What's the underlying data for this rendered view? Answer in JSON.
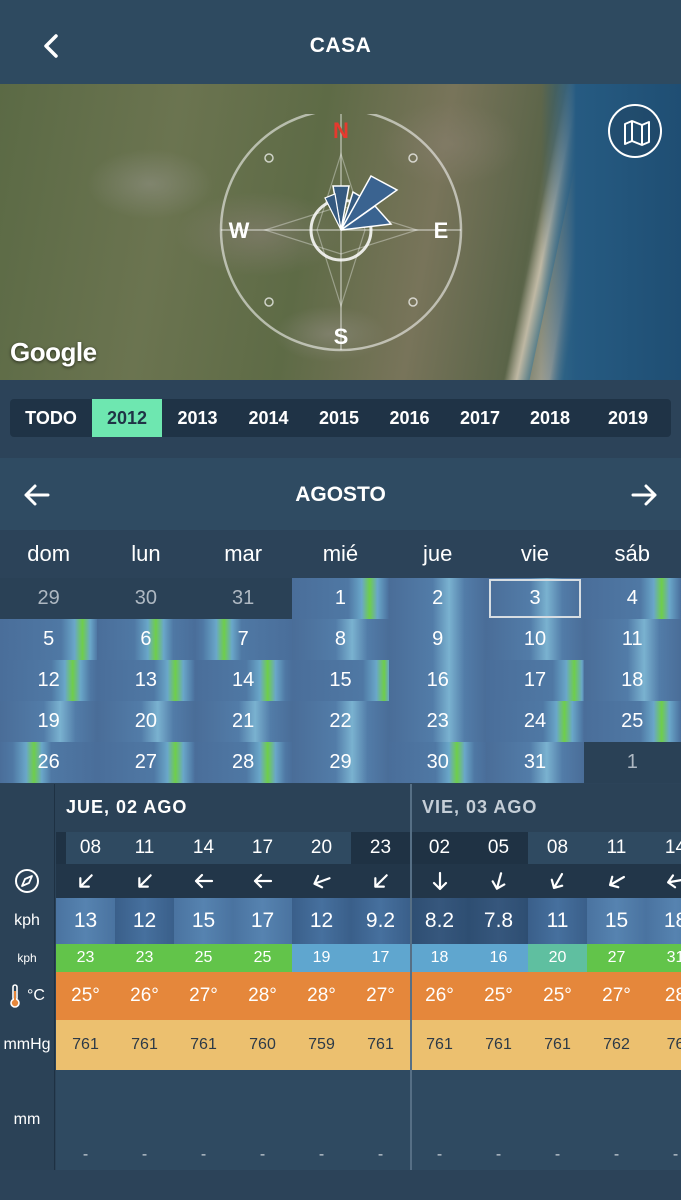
{
  "header": {
    "title": "CASA",
    "back_icon": "chevron-left-icon"
  },
  "map": {
    "attribution": "Google",
    "map_button_icon": "map-icon",
    "compass": {
      "north": "N",
      "south": "S",
      "east": "E",
      "west": "W"
    }
  },
  "years": {
    "tabs": [
      "TODO",
      "2012",
      "2013",
      "2014",
      "2015",
      "2016",
      "2017",
      "2018",
      "2019"
    ],
    "active": "2012"
  },
  "month": {
    "title": "AGOSTO",
    "prev_icon": "arrow-left-icon",
    "next_icon": "arrow-right-icon"
  },
  "weekdays": [
    "dom",
    "lun",
    "mar",
    "mié",
    "jue",
    "vie",
    "sáb"
  ],
  "calendar": {
    "weeks": [
      [
        "29",
        "30",
        "31",
        "1",
        "2",
        "3",
        "4"
      ],
      [
        "5",
        "6",
        "7",
        "8",
        "9",
        "10",
        "11"
      ],
      [
        "12",
        "13",
        "14",
        "15",
        "16",
        "17",
        "18"
      ],
      [
        "19",
        "20",
        "21",
        "22",
        "23",
        "24",
        "25"
      ],
      [
        "26",
        "27",
        "28",
        "29",
        "30",
        "31",
        "1"
      ]
    ],
    "selected": "3"
  },
  "forecast": {
    "days": [
      {
        "label": "JUE, 02 AGO",
        "hours": [
          "08",
          "11",
          "14",
          "17",
          "20",
          "23"
        ]
      },
      {
        "label": "VIE, 03 AGO",
        "hours": [
          "02",
          "05",
          "08",
          "11",
          "14"
        ]
      }
    ],
    "row_labels": {
      "direction_icon": "compass-icon",
      "wind": "kph",
      "gust": "kph",
      "temp_icon": "thermometer-icon",
      "temp": "°C",
      "pressure": "mmHg",
      "rain": "mm"
    },
    "wind_direction_deg": [
      45,
      45,
      90,
      90,
      70,
      45,
      0,
      15,
      30,
      60,
      80
    ],
    "wind": [
      "13",
      "12",
      "15",
      "17",
      "12",
      "9.2",
      "8.2",
      "7.8",
      "11",
      "15",
      "18"
    ],
    "gust": [
      "23",
      "23",
      "25",
      "25",
      "19",
      "17",
      "18",
      "16",
      "20",
      "27",
      "31"
    ],
    "temp": [
      "25°",
      "26°",
      "27°",
      "28°",
      "28°",
      "27°",
      "26°",
      "25°",
      "25°",
      "27°",
      "28"
    ],
    "pressure": [
      "761",
      "761",
      "761",
      "760",
      "759",
      "761",
      "761",
      "761",
      "761",
      "762",
      "76"
    ],
    "rain": [
      "-",
      "-",
      "-",
      "-",
      "-",
      "-",
      "-",
      "-",
      "-",
      "-",
      "-"
    ]
  }
}
